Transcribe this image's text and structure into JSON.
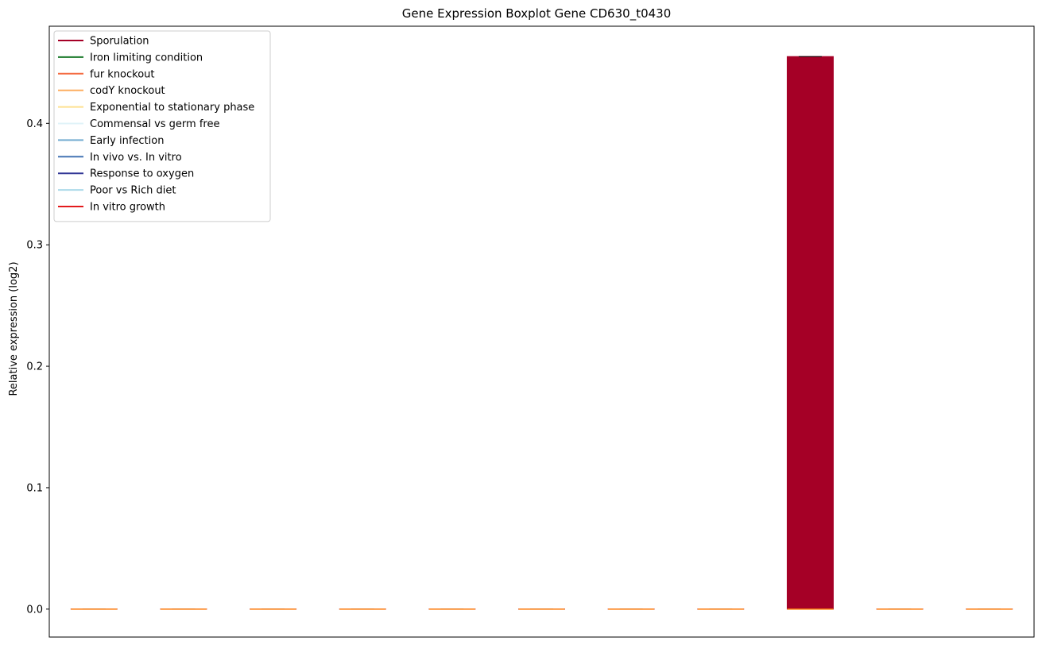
{
  "chart_data": {
    "type": "box",
    "title": "Gene Expression Boxplot Gene CD630_t0430",
    "xlabel": "",
    "ylabel": "Relative expression (log2)",
    "ylim": [
      -0.023,
      0.48
    ],
    "yticks": [
      "0.0",
      "0.1",
      "0.2",
      "0.3",
      "0.4"
    ],
    "ytick_values": [
      0.0,
      0.1,
      0.2,
      0.3,
      0.4
    ],
    "grid": false,
    "legend_position": "top-left",
    "median_color": "#ff7f0e",
    "series": [
      {
        "name": "Sporulation",
        "color": "#a50026",
        "q1": 0.0,
        "median": 0.0,
        "q3": 0.0,
        "min": 0.0,
        "max": 0.0
      },
      {
        "name": "Iron limiting condition",
        "color": "#1a7a2a",
        "q1": 0.0,
        "median": 0.0,
        "q3": 0.0,
        "min": 0.0,
        "max": 0.0
      },
      {
        "name": "fur knockout",
        "color": "#f46d43",
        "q1": 0.0,
        "median": 0.0,
        "q3": 0.0,
        "min": 0.0,
        "max": 0.0
      },
      {
        "name": "codY knockout",
        "color": "#fdae61",
        "q1": 0.0,
        "median": 0.0,
        "q3": 0.0,
        "min": 0.0,
        "max": 0.0
      },
      {
        "name": "Exponential to stationary phase",
        "color": "#fee090",
        "q1": 0.0,
        "median": 0.0,
        "q3": 0.0,
        "min": 0.0,
        "max": 0.0
      },
      {
        "name": "Commensal vs germ free",
        "color": "#e0f3f8",
        "q1": 0.0,
        "median": 0.0,
        "q3": 0.0,
        "min": 0.0,
        "max": 0.0
      },
      {
        "name": "Early infection",
        "color": "#74add1",
        "q1": 0.0,
        "median": 0.0,
        "q3": 0.0,
        "min": 0.0,
        "max": 0.0
      },
      {
        "name": "In vivo vs. In vitro",
        "color": "#4575b4",
        "q1": 0.0,
        "median": 0.0,
        "q3": 0.0,
        "min": 0.0,
        "max": 0.0
      },
      {
        "name": "Response to oxygen",
        "color": "#313695",
        "q1": 0.0,
        "median": 0.0,
        "q3": 0.455,
        "min": 0.0,
        "max": 0.455
      },
      {
        "name": "Poor vs Rich diet",
        "color": "#abd9e9",
        "q1": 0.0,
        "median": 0.0,
        "q3": 0.0,
        "min": 0.0,
        "max": 0.0
      },
      {
        "name": "In vitro growth",
        "color": "#e31a1c",
        "q1": 0.0,
        "median": 0.0,
        "q3": 0.0,
        "min": 0.0,
        "max": 0.0
      }
    ],
    "box_fill_color": "#a50026",
    "box_edge_color": "#a50026"
  }
}
